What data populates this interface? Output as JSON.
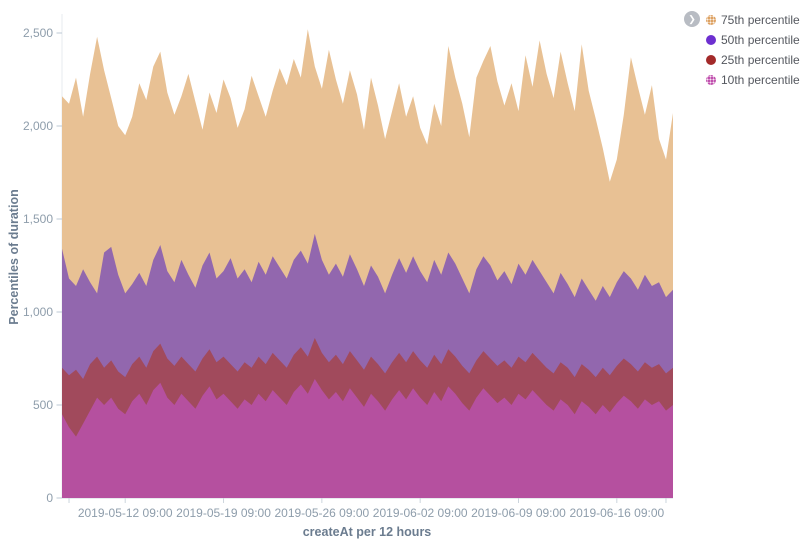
{
  "legend": {
    "toggle_icon": "chevron-right",
    "items": [
      {
        "label": "75th percentile of",
        "color": "#dda263",
        "textured": true
      },
      {
        "label": "50th percentile of",
        "color": "#6d2fd0",
        "textured": false
      },
      {
        "label": "25th percentile of",
        "color": "#a32a2a",
        "textured": false
      },
      {
        "label": "10th percentile of",
        "color": "#c04fae",
        "textured": true
      }
    ]
  },
  "chart_data": {
    "type": "area",
    "overlap_mode": "overlapping (each series filled from 0)",
    "title": "",
    "xlabel": "createAt per 12 hours",
    "ylabel": "Percentiles of duration",
    "ylim": [
      0,
      2500
    ],
    "grid": false,
    "legend_position": "top-right",
    "yticks": [
      {
        "value": 0,
        "label": "0"
      },
      {
        "value": 500,
        "label": "500"
      },
      {
        "value": 1000,
        "label": "1,000"
      },
      {
        "value": 1500,
        "label": "1,500"
      },
      {
        "value": 2000,
        "label": "2,000"
      },
      {
        "value": 2500,
        "label": "2,500"
      }
    ],
    "xticks": [
      {
        "index": 9,
        "label": "2019-05-12 09:00"
      },
      {
        "index": 23,
        "label": "2019-05-19 09:00"
      },
      {
        "index": 37,
        "label": "2019-05-26 09:00"
      },
      {
        "index": 51,
        "label": "2019-06-02 09:00"
      },
      {
        "index": 65,
        "label": "2019-06-09 09:00"
      },
      {
        "index": 79,
        "label": "2019-06-16 09:00"
      }
    ],
    "series": [
      {
        "name": "75th percentile",
        "color": "#e8c194",
        "values": [
          2160,
          2120,
          2260,
          2050,
          2280,
          2480,
          2300,
          2150,
          2000,
          1950,
          2050,
          2230,
          2140,
          2320,
          2400,
          2180,
          2060,
          2160,
          2280,
          2130,
          1980,
          2180,
          2070,
          2250,
          2150,
          1990,
          2090,
          2270,
          2160,
          2050,
          2190,
          2310,
          2220,
          2360,
          2260,
          2520,
          2320,
          2200,
          2410,
          2250,
          2120,
          2300,
          2170,
          1980,
          2260,
          2110,
          1930,
          2080,
          2230,
          2050,
          2160,
          1990,
          1900,
          2120,
          2000,
          2430,
          2260,
          2120,
          1940,
          2260,
          2350,
          2430,
          2240,
          2110,
          2230,
          2080,
          2380,
          2210,
          2460,
          2280,
          2150,
          2400,
          2230,
          2080,
          2440,
          2190,
          2040,
          1880,
          1700,
          1820,
          2060,
          2370,
          2210,
          2060,
          2220,
          1930,
          1820,
          2070
        ]
      },
      {
        "name": "50th percentile",
        "color": "#9267ae",
        "values": [
          1340,
          1180,
          1140,
          1230,
          1160,
          1100,
          1320,
          1350,
          1200,
          1100,
          1150,
          1210,
          1140,
          1280,
          1360,
          1220,
          1160,
          1280,
          1200,
          1130,
          1250,
          1320,
          1180,
          1220,
          1290,
          1180,
          1230,
          1160,
          1270,
          1200,
          1300,
          1240,
          1180,
          1280,
          1330,
          1260,
          1420,
          1280,
          1200,
          1260,
          1190,
          1310,
          1230,
          1140,
          1250,
          1190,
          1100,
          1200,
          1290,
          1210,
          1300,
          1220,
          1160,
          1280,
          1200,
          1320,
          1260,
          1180,
          1100,
          1230,
          1300,
          1250,
          1170,
          1220,
          1150,
          1260,
          1200,
          1280,
          1220,
          1160,
          1100,
          1210,
          1150,
          1080,
          1180,
          1120,
          1060,
          1140,
          1080,
          1160,
          1220,
          1180,
          1120,
          1200,
          1140,
          1160,
          1080,
          1120
        ]
      },
      {
        "name": "25th percentile",
        "color": "#a14a5c",
        "values": [
          700,
          660,
          690,
          640,
          720,
          760,
          700,
          740,
          680,
          650,
          720,
          760,
          700,
          790,
          830,
          750,
          710,
          760,
          720,
          680,
          750,
          800,
          730,
          760,
          720,
          680,
          730,
          700,
          760,
          720,
          780,
          740,
          700,
          770,
          810,
          760,
          860,
          780,
          730,
          770,
          720,
          790,
          740,
          690,
          760,
          720,
          670,
          730,
          780,
          730,
          790,
          740,
          700,
          770,
          720,
          800,
          760,
          710,
          670,
          740,
          790,
          750,
          710,
          740,
          700,
          760,
          730,
          780,
          740,
          700,
          670,
          730,
          700,
          650,
          720,
          690,
          650,
          700,
          660,
          710,
          750,
          720,
          680,
          730,
          700,
          720,
          670,
          700
        ]
      },
      {
        "name": "10th percentile",
        "color": "#b5509f",
        "values": [
          450,
          380,
          330,
          400,
          470,
          540,
          500,
          540,
          480,
          450,
          520,
          560,
          500,
          580,
          620,
          540,
          500,
          560,
          520,
          480,
          550,
          600,
          530,
          560,
          520,
          480,
          530,
          500,
          560,
          520,
          580,
          540,
          500,
          570,
          610,
          560,
          640,
          580,
          530,
          570,
          520,
          590,
          540,
          490,
          560,
          520,
          470,
          530,
          580,
          530,
          590,
          540,
          500,
          570,
          520,
          600,
          560,
          510,
          470,
          540,
          590,
          550,
          510,
          540,
          500,
          560,
          530,
          580,
          540,
          500,
          470,
          530,
          500,
          450,
          520,
          490,
          450,
          500,
          460,
          510,
          550,
          520,
          480,
          530,
          500,
          520,
          470,
          500
        ]
      }
    ]
  }
}
